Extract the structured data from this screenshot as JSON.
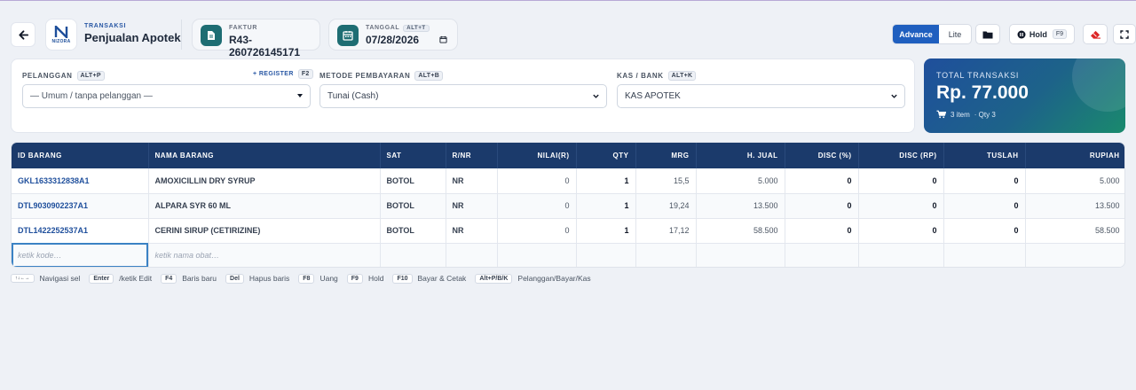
{
  "header": {
    "eyebrow": "TRANSAKSI",
    "title": "Penjualan Apotek",
    "logo_text": "NIZORA",
    "faktur": {
      "label": "FAKTUR",
      "value": "R43-260726145171"
    },
    "tanggal": {
      "label": "TANGGAL",
      "shortcut": "ALT+T",
      "value": "07/28/2026"
    },
    "mode": {
      "advance": "Advance",
      "lite": "Lite",
      "active": "Advance"
    },
    "hold": {
      "label": "Hold",
      "shortcut": "F9"
    }
  },
  "form": {
    "pelanggan": {
      "label": "PELANGGAN",
      "shortcut": "ALT+P",
      "register": "+ REGISTER",
      "register_key": "F2",
      "value": "— Umum / tanpa pelanggan —"
    },
    "metode": {
      "label": "METODE PEMBAYARAN",
      "shortcut": "ALT+B",
      "value": "Tunai (Cash)"
    },
    "kas": {
      "label": "KAS / BANK",
      "shortcut": "ALT+K",
      "value": "KAS APOTEK"
    }
  },
  "total": {
    "label": "TOTAL TRANSAKSI",
    "value": "Rp. 77.000",
    "items": "3 item",
    "qty": "· Qty 3"
  },
  "table": {
    "columns": [
      "ID BARANG",
      "NAMA BARANG",
      "SAT",
      "R/NR",
      "NILAI(R)",
      "QTY",
      "MRG",
      "H. JUAL",
      "DISC (%)",
      "DISC (RP)",
      "TUSLAH",
      "RUPIAH"
    ],
    "rows": [
      [
        "GKL1633312838A1",
        "AMOXICILLIN DRY SYRUP",
        "BOTOL",
        "NR",
        "0",
        "1",
        "15,5",
        "5.000",
        "0",
        "0",
        "0",
        "5.000"
      ],
      [
        "DTL9030902237A1",
        "ALPARA SYR 60 ML",
        "BOTOL",
        "NR",
        "0",
        "1",
        "19,24",
        "13.500",
        "0",
        "0",
        "0",
        "13.500"
      ],
      [
        "DTL1422252537A1",
        "CERINI SIRUP (CETIRIZINE)",
        "BOTOL",
        "NR",
        "0",
        "1",
        "17,12",
        "58.500",
        "0",
        "0",
        "0",
        "58.500"
      ]
    ],
    "input_row": {
      "kode_placeholder": "ketik kode…",
      "nama_placeholder": "ketik nama obat…"
    }
  },
  "hints": [
    {
      "key": "↑↓←→",
      "text": "Navigasi sel"
    },
    {
      "key": "Enter",
      "text": "/ketik Edit"
    },
    {
      "key": "F4",
      "text": "Baris baru"
    },
    {
      "key": "Del",
      "text": "Hapus baris"
    },
    {
      "key": "F8",
      "text": "Uang"
    },
    {
      "key": "F9",
      "text": "Hold"
    },
    {
      "key": "F10",
      "text": "Bayar & Cetak"
    },
    {
      "key": "Alt+P/B/K",
      "text": "Pelanggan/Bayar/Kas"
    }
  ],
  "colors": {
    "accent": "#1f5fbf",
    "table_header": "#1b3a6b",
    "icon_teal": "#1e6d73",
    "id_text": "#1f4f9c"
  }
}
